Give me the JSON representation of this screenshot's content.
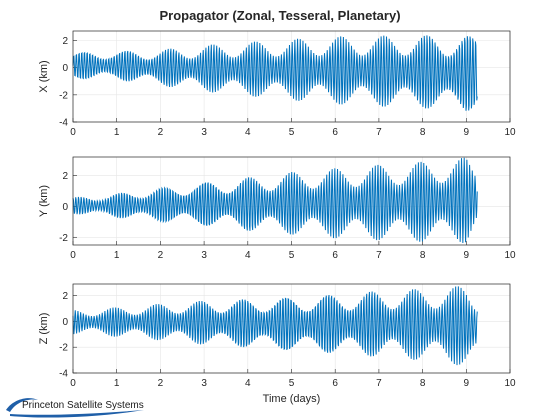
{
  "figure_title": "Propagator (Zonal, Tesseral, Planetary)",
  "logo": {
    "text": "Princeton Satellite Systems",
    "icon": "swoosh-logo-icon"
  },
  "colors": {
    "line": "#0072bd",
    "axis": "#262626",
    "grid": "#e6e6e6",
    "background": "#ffffff"
  },
  "chart_data": [
    {
      "type": "line",
      "title": "Propagator (Zonal, Tesseral, Planetary)",
      "xlabel": "",
      "ylabel": "X (km)",
      "xlim": [
        0,
        10
      ],
      "ylim": [
        -4,
        2.7
      ],
      "xticks": [
        "0",
        "1",
        "2",
        "3",
        "4",
        "5",
        "6",
        "7",
        "8",
        "9",
        "10"
      ],
      "yticks": [
        "-4",
        "-2",
        "0",
        "2"
      ],
      "grid": true,
      "series": [
        {
          "x_range": [
            0,
            9.25
          ],
          "description_envelope": {
            "x": [
              0,
              1,
              2,
              3,
              4,
              5,
              6,
              7,
              8,
              9,
              9.25
            ],
            "max": [
              1.2,
              1.3,
              1.4,
              1.7,
              1.9,
              2.1,
              2.3,
              2.4,
              2.5,
              2.6,
              2.4
            ],
            "min": [
              -0.9,
              -1.0,
              -1.4,
              -1.8,
              -2.1,
              -2.4,
              -2.7,
              -2.9,
              -3.1,
              -3.5,
              -3.0
            ]
          }
        }
      ]
    },
    {
      "type": "line",
      "title": "",
      "xlabel": "",
      "ylabel": "Y (km)",
      "xlim": [
        0,
        10
      ],
      "ylim": [
        -2.5,
        3.2
      ],
      "xticks": [
        "0",
        "1",
        "2",
        "3",
        "4",
        "5",
        "6",
        "7",
        "8",
        "9",
        "10"
      ],
      "yticks": [
        "-2",
        "0",
        "2"
      ],
      "grid": true,
      "series": [
        {
          "x_range": [
            0,
            9.25
          ],
          "description_envelope": {
            "x": [
              0,
              1,
              2,
              3,
              4,
              5,
              6,
              7,
              8,
              9,
              9.25
            ],
            "max": [
              0.6,
              0.9,
              1.3,
              1.7,
              2.0,
              2.3,
              2.5,
              2.7,
              2.9,
              3.2,
              2.6
            ],
            "min": [
              -0.5,
              -0.8,
              -1.1,
              -1.4,
              -1.7,
              -1.9,
              -2.1,
              -2.2,
              -2.3,
              -2.4,
              -1.5
            ]
          }
        }
      ]
    },
    {
      "type": "line",
      "title": "",
      "xlabel": "Time (days)",
      "ylabel": "Z (km)",
      "xlim": [
        0,
        10
      ],
      "ylim": [
        -4,
        2.9
      ],
      "xticks": [
        "0",
        "1",
        "2",
        "3",
        "4",
        "5",
        "6",
        "7",
        "8",
        "9",
        "10"
      ],
      "yticks": [
        "-4",
        "-2",
        "0",
        "2"
      ],
      "grid": true,
      "series": [
        {
          "x_range": [
            0,
            9.25
          ],
          "description_envelope": {
            "x": [
              0,
              1,
              2,
              3,
              4,
              5,
              6,
              7,
              8,
              9,
              9.25
            ],
            "max": [
              0.9,
              1.1,
              1.4,
              1.7,
              1.9,
              2.1,
              2.3,
              2.5,
              2.6,
              2.8,
              2.3
            ],
            "min": [
              -1.0,
              -1.2,
              -1.5,
              -1.9,
              -2.2,
              -2.5,
              -2.7,
              -2.9,
              -3.1,
              -3.5,
              -3.2
            ]
          }
        }
      ]
    }
  ]
}
